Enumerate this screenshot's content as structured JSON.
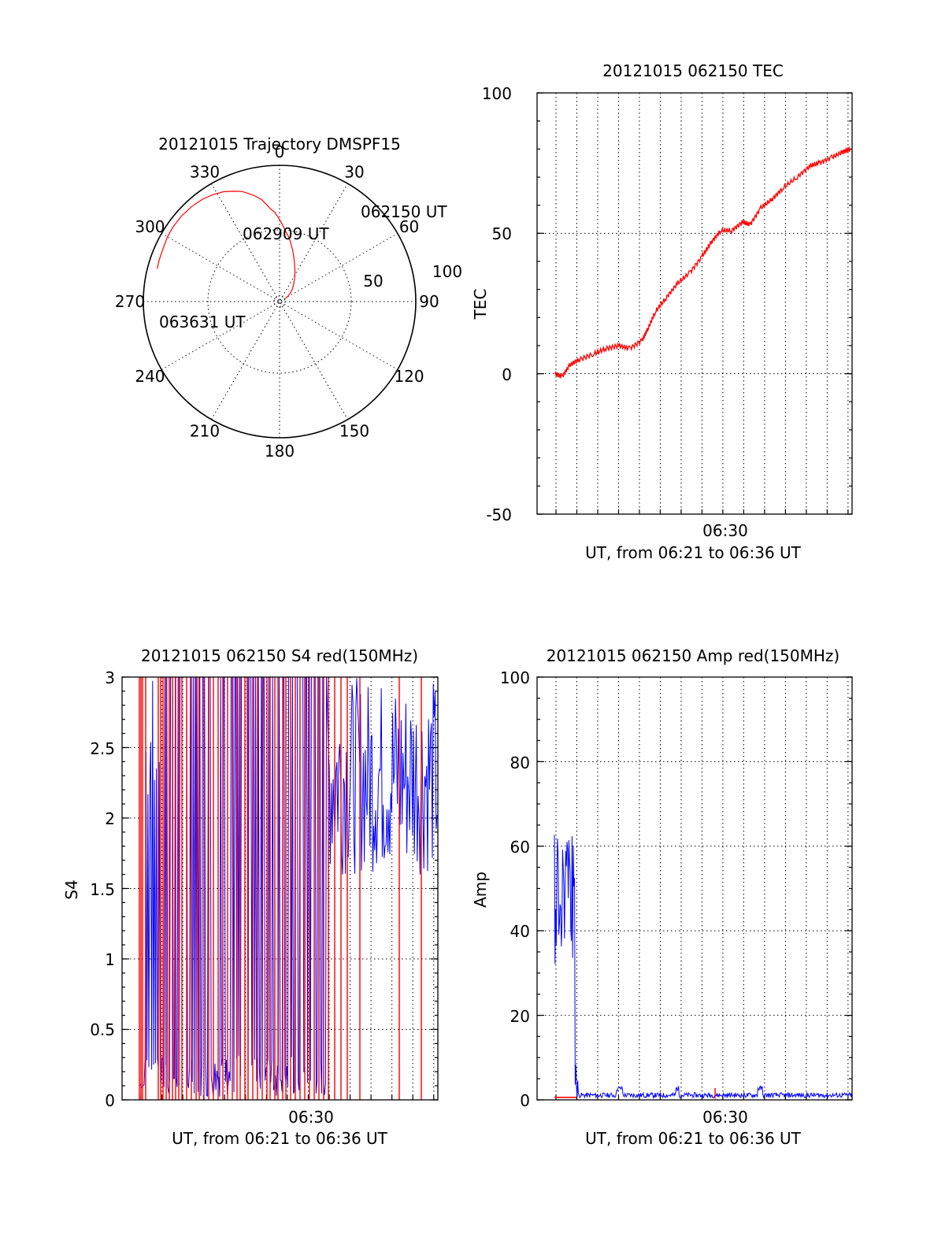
{
  "chart_data": [
    {
      "type": "polar",
      "title": "20121015 Trajectory DMSPF15",
      "angle_labels": [
        "0",
        "30",
        "60",
        "90",
        "120",
        "150",
        "180",
        "210",
        "240",
        "270",
        "300",
        "330"
      ],
      "radius_labels": [
        "50",
        "100"
      ],
      "trajectory": {
        "color": "#ff0000",
        "points": [
          [
            62,
            10
          ],
          [
            57,
            15
          ],
          [
            51,
            21
          ],
          [
            45,
            27
          ],
          [
            38,
            34
          ],
          [
            32,
            42
          ],
          [
            27,
            50
          ],
          [
            22,
            59
          ],
          [
            18,
            68
          ],
          [
            15,
            76
          ],
          [
            12,
            84
          ],
          [
            10,
            90
          ],
          [
            8,
            96
          ],
          [
            5,
            103
          ],
          [
            3,
            110
          ],
          [
            1,
            117
          ],
          [
            359,
            124
          ],
          [
            357,
            131
          ],
          [
            354,
            138
          ],
          [
            352,
            145
          ],
          [
            350,
            152
          ],
          [
            347,
            159
          ],
          [
            344,
            165
          ],
          [
            341,
            171
          ],
          [
            337,
            176
          ],
          [
            333,
            181
          ],
          [
            328,
            185
          ],
          [
            323,
            188
          ],
          [
            317,
            190
          ],
          [
            311,
            191
          ],
          [
            305,
            191
          ],
          [
            300,
            190
          ],
          [
            295,
            188
          ],
          [
            289,
            187
          ],
          [
            285,
            186
          ]
        ]
      },
      "annotations": [
        "062150 UT",
        "062909 UT",
        "063631 UT"
      ]
    },
    {
      "type": "line",
      "title": "20121015 062150 TEC",
      "ylabel": "TEC",
      "xlabel": "UT, from 06:21 to 06:36 UT",
      "x_tick_label": "06:30",
      "yticks": [
        "100",
        "50",
        "0",
        "-50"
      ],
      "ylim": [
        -50,
        100
      ],
      "series": [
        {
          "color": "#ff0000",
          "x": [
            0.9,
            1.3,
            1.7,
            2.2,
            3.0,
            3.7,
            4.4,
            5.0,
            5.7,
            6.0,
            6.4,
            7.0,
            7.6,
            8.3,
            9.0,
            9.5,
            10.0,
            10.6,
            11.2,
            11.6,
            12.2,
            12.8,
            13.4,
            14.2,
            14.9,
            15.4,
            16.1,
            16.7,
            17.1
          ],
          "values": [
            0,
            -1,
            3,
            5,
            7,
            9,
            10,
            9,
            12,
            16,
            22,
            27,
            32,
            36,
            42,
            47,
            51,
            51,
            54,
            53,
            59,
            62,
            66,
            70,
            74,
            75,
            77,
            79,
            80
          ]
        }
      ]
    },
    {
      "type": "line",
      "title": "20121015 062150 S4 red(150MHz)",
      "ylabel": "S4",
      "xlabel": "UT, from 06:21 to 06:36 UT",
      "x_tick_label": "06:30",
      "yticks": [
        "3",
        "2.5",
        "2",
        "1.5",
        "1",
        "0.5",
        "0"
      ],
      "ylim": [
        0,
        3
      ],
      "series": [
        {
          "name": "",
          "color": "#0000ff"
        },
        {
          "name": "",
          "color": "#ff0000"
        }
      ]
    },
    {
      "type": "line",
      "title": "20121015 062150 Amp red(150MHz)",
      "ylabel": "Amp",
      "xlabel": "UT, from 06:21 to 06:36 UT",
      "x_tick_label": "06:30",
      "yticks": [
        "100",
        "80",
        "60",
        "40",
        "20",
        "0"
      ],
      "ylim": [
        0,
        100
      ],
      "series": [
        {
          "name": "",
          "color": "#0000ff"
        },
        {
          "name": "",
          "color": "#ff0000"
        }
      ]
    }
  ]
}
